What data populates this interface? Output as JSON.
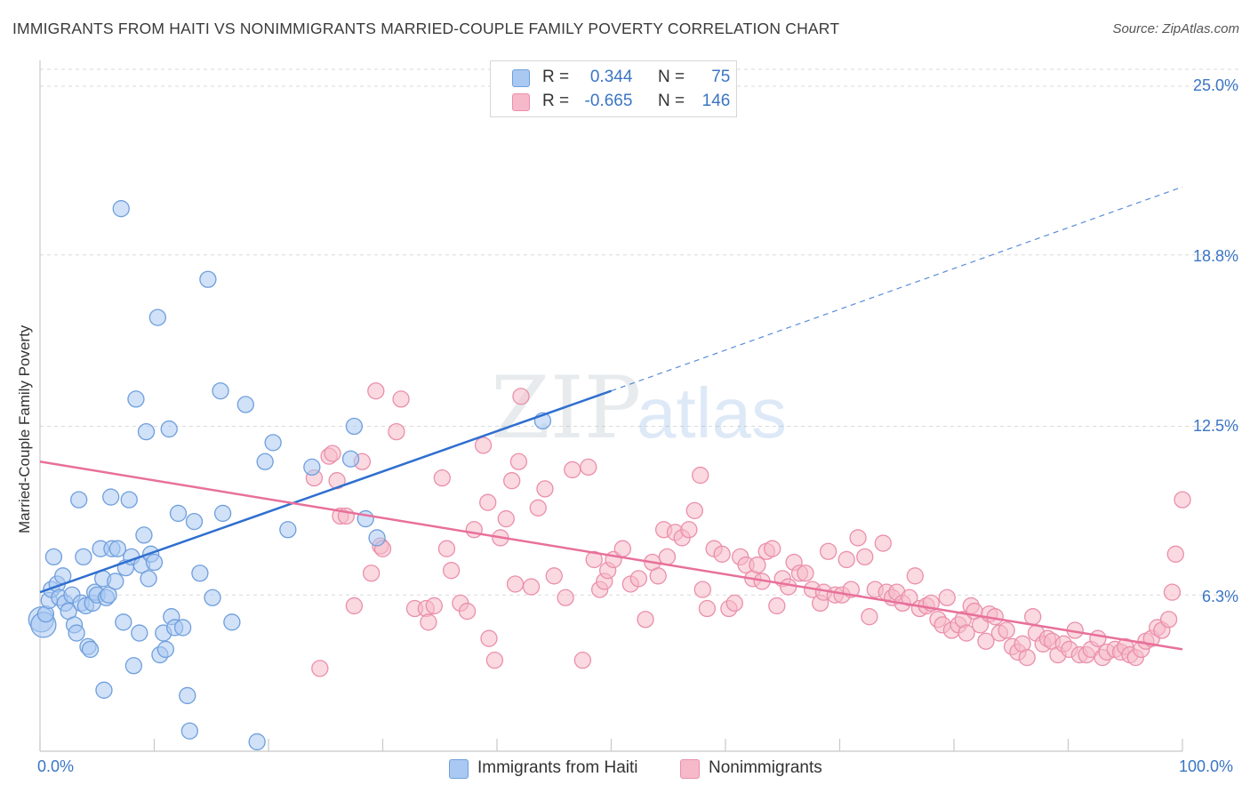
{
  "title": "IMMIGRANTS FROM HAITI VS NONIMMIGRANTS MARRIED-COUPLE FAMILY POVERTY CORRELATION CHART",
  "source": "Source: ZipAtlas.com",
  "watermark": {
    "zip": "ZIP",
    "atlas": "atlas"
  },
  "legend": {
    "rows": [
      {
        "r_label": "R =",
        "r_value": "0.344",
        "n_label": "N =",
        "n_value": "75",
        "color": "#a9c8f2"
      },
      {
        "r_label": "R =",
        "r_value": "-0.665",
        "n_label": "N =",
        "n_value": "146",
        "color": "#f6b9c9"
      }
    ]
  },
  "colors": {
    "blue_fill": "#a9c8f2",
    "blue_stroke": "#6f9fdc",
    "blue_line": "#2f6fcf",
    "pink_fill": "#f6b9c9",
    "pink_stroke": "#ea8faa",
    "pink_line": "#e8709a",
    "tick_text": "#3a75c4",
    "grid": "#d9d9d9"
  },
  "chart_data": {
    "type": "scatter",
    "title": "IMMIGRANTS FROM HAITI VS NONIMMIGRANTS MARRIED-COUPLE FAMILY POVERTY CORRELATION CHART",
    "xlabel": "",
    "ylabel": "Married-Couple Family Poverty",
    "xlim": [
      0,
      100
    ],
    "ylim": [
      0,
      26
    ],
    "x_tick_labels": [
      "0.0%",
      "100.0%"
    ],
    "y_ticks": [
      6.3,
      12.5,
      18.8,
      25.0
    ],
    "y_tick_labels": [
      "6.3%",
      "12.5%",
      "18.8%",
      "25.0%"
    ],
    "grid": true,
    "legend_position": "bottom",
    "series": [
      {
        "name": "Immigrants from Haiti",
        "trend": {
          "x": [
            0,
            50
          ],
          "y": [
            6.4,
            13.8
          ],
          "dashed_to": [
            100,
            21.3
          ]
        },
        "points": [
          [
            0.1,
            5.4
          ],
          [
            0.3,
            5.2
          ],
          [
            0.5,
            5.6
          ],
          [
            0.8,
            6.1
          ],
          [
            1.0,
            6.5
          ],
          [
            1.2,
            7.7
          ],
          [
            1.5,
            6.7
          ],
          [
            1.7,
            6.2
          ],
          [
            2.0,
            7.0
          ],
          [
            2.2,
            6.0
          ],
          [
            2.5,
            5.7
          ],
          [
            2.8,
            6.3
          ],
          [
            3.0,
            5.2
          ],
          [
            3.2,
            4.9
          ],
          [
            3.4,
            9.8
          ],
          [
            3.6,
            6.0
          ],
          [
            3.8,
            7.7
          ],
          [
            4.0,
            5.9
          ],
          [
            4.2,
            4.4
          ],
          [
            4.4,
            4.3
          ],
          [
            4.6,
            6.0
          ],
          [
            4.8,
            6.4
          ],
          [
            5.0,
            6.3
          ],
          [
            5.3,
            8.0
          ],
          [
            5.5,
            6.9
          ],
          [
            5.6,
            2.8
          ],
          [
            5.8,
            6.2
          ],
          [
            6.0,
            6.3
          ],
          [
            6.2,
            9.9
          ],
          [
            6.3,
            8.0
          ],
          [
            6.6,
            6.8
          ],
          [
            6.8,
            8.0
          ],
          [
            7.1,
            20.5
          ],
          [
            7.3,
            5.3
          ],
          [
            7.5,
            7.3
          ],
          [
            7.8,
            9.8
          ],
          [
            8.0,
            7.7
          ],
          [
            8.2,
            3.7
          ],
          [
            8.4,
            13.5
          ],
          [
            8.7,
            4.9
          ],
          [
            8.9,
            7.4
          ],
          [
            9.1,
            8.5
          ],
          [
            9.3,
            12.3
          ],
          [
            9.5,
            6.9
          ],
          [
            9.7,
            7.8
          ],
          [
            10.0,
            7.5
          ],
          [
            10.3,
            16.5
          ],
          [
            10.5,
            4.1
          ],
          [
            10.8,
            4.9
          ],
          [
            11.0,
            4.3
          ],
          [
            11.3,
            12.4
          ],
          [
            11.5,
            5.5
          ],
          [
            11.8,
            5.1
          ],
          [
            12.1,
            9.3
          ],
          [
            12.5,
            5.1
          ],
          [
            12.9,
            2.6
          ],
          [
            13.1,
            1.3
          ],
          [
            13.5,
            9.0
          ],
          [
            14.0,
            7.1
          ],
          [
            14.7,
            17.9
          ],
          [
            15.1,
            6.2
          ],
          [
            15.8,
            13.8
          ],
          [
            16.0,
            9.3
          ],
          [
            16.8,
            5.3
          ],
          [
            18.0,
            13.3
          ],
          [
            19.0,
            0.9
          ],
          [
            19.7,
            11.2
          ],
          [
            20.4,
            11.9
          ],
          [
            21.7,
            8.7
          ],
          [
            23.8,
            11.0
          ],
          [
            27.2,
            11.3
          ],
          [
            27.5,
            12.5
          ],
          [
            28.5,
            9.1
          ],
          [
            29.5,
            8.4
          ],
          [
            44.0,
            12.7
          ]
        ]
      },
      {
        "name": "Nonimmigrants",
        "trend": {
          "x": [
            0,
            100
          ],
          "y": [
            11.2,
            4.3
          ]
        },
        "points": [
          [
            24.0,
            10.6
          ],
          [
            24.5,
            3.6
          ],
          [
            25.3,
            11.4
          ],
          [
            25.6,
            11.5
          ],
          [
            26.0,
            10.5
          ],
          [
            26.3,
            9.2
          ],
          [
            26.8,
            9.2
          ],
          [
            27.5,
            5.9
          ],
          [
            28.2,
            11.2
          ],
          [
            29.0,
            7.1
          ],
          [
            29.8,
            8.1
          ],
          [
            30.0,
            8.0
          ],
          [
            29.4,
            13.8
          ],
          [
            31.2,
            12.3
          ],
          [
            31.6,
            13.5
          ],
          [
            32.8,
            5.8
          ],
          [
            33.8,
            5.8
          ],
          [
            34.0,
            5.3
          ],
          [
            34.5,
            5.9
          ],
          [
            35.2,
            10.6
          ],
          [
            35.6,
            8.0
          ],
          [
            36.0,
            7.2
          ],
          [
            36.8,
            6.0
          ],
          [
            37.4,
            5.7
          ],
          [
            38.0,
            8.7
          ],
          [
            38.8,
            11.8
          ],
          [
            39.2,
            9.7
          ],
          [
            39.3,
            4.7
          ],
          [
            39.8,
            3.9
          ],
          [
            40.3,
            8.4
          ],
          [
            40.8,
            9.1
          ],
          [
            41.3,
            10.5
          ],
          [
            41.6,
            6.7
          ],
          [
            41.9,
            11.2
          ],
          [
            42.1,
            13.6
          ],
          [
            43.0,
            6.6
          ],
          [
            43.6,
            9.5
          ],
          [
            44.2,
            10.2
          ],
          [
            45.0,
            7.0
          ],
          [
            46.0,
            6.2
          ],
          [
            46.6,
            10.9
          ],
          [
            47.5,
            3.9
          ],
          [
            48.0,
            11.0
          ],
          [
            48.5,
            7.6
          ],
          [
            49.0,
            6.5
          ],
          [
            49.4,
            6.8
          ],
          [
            49.7,
            7.2
          ],
          [
            50.2,
            7.6
          ],
          [
            51.0,
            8.0
          ],
          [
            51.7,
            6.7
          ],
          [
            52.4,
            6.9
          ],
          [
            53.0,
            5.4
          ],
          [
            53.6,
            7.5
          ],
          [
            54.1,
            7.0
          ],
          [
            54.6,
            8.7
          ],
          [
            54.9,
            7.7
          ],
          [
            55.6,
            8.6
          ],
          [
            56.2,
            8.4
          ],
          [
            56.8,
            8.7
          ],
          [
            57.3,
            9.4
          ],
          [
            57.8,
            10.7
          ],
          [
            58.0,
            6.5
          ],
          [
            58.4,
            5.8
          ],
          [
            59.0,
            8.0
          ],
          [
            59.7,
            7.8
          ],
          [
            60.3,
            5.8
          ],
          [
            60.8,
            6.0
          ],
          [
            61.3,
            7.7
          ],
          [
            61.8,
            7.4
          ],
          [
            62.4,
            6.9
          ],
          [
            62.8,
            7.4
          ],
          [
            63.2,
            6.8
          ],
          [
            63.6,
            7.9
          ],
          [
            64.1,
            8.0
          ],
          [
            64.5,
            5.9
          ],
          [
            65.0,
            6.9
          ],
          [
            65.5,
            6.6
          ],
          [
            66.0,
            7.5
          ],
          [
            66.5,
            7.1
          ],
          [
            67.0,
            7.1
          ],
          [
            67.6,
            6.5
          ],
          [
            68.3,
            6.0
          ],
          [
            68.6,
            6.4
          ],
          [
            69.0,
            7.9
          ],
          [
            69.6,
            6.3
          ],
          [
            70.2,
            6.3
          ],
          [
            70.6,
            7.6
          ],
          [
            71.0,
            6.5
          ],
          [
            71.6,
            8.4
          ],
          [
            72.2,
            7.7
          ],
          [
            72.6,
            5.5
          ],
          [
            73.1,
            6.5
          ],
          [
            73.8,
            8.2
          ],
          [
            74.1,
            6.4
          ],
          [
            74.6,
            6.2
          ],
          [
            75.0,
            6.4
          ],
          [
            75.5,
            6.0
          ],
          [
            76.1,
            6.2
          ],
          [
            76.6,
            7.0
          ],
          [
            77.0,
            5.8
          ],
          [
            77.6,
            5.9
          ],
          [
            78.0,
            6.0
          ],
          [
            78.6,
            5.4
          ],
          [
            79.0,
            5.2
          ],
          [
            79.4,
            6.2
          ],
          [
            79.8,
            5.0
          ],
          [
            80.4,
            5.2
          ],
          [
            80.8,
            5.4
          ],
          [
            81.1,
            4.9
          ],
          [
            81.5,
            5.9
          ],
          [
            81.8,
            5.7
          ],
          [
            82.3,
            5.2
          ],
          [
            82.8,
            4.6
          ],
          [
            83.1,
            5.6
          ],
          [
            83.6,
            5.5
          ],
          [
            84.0,
            4.9
          ],
          [
            84.6,
            5.0
          ],
          [
            85.1,
            4.4
          ],
          [
            85.6,
            4.2
          ],
          [
            86.0,
            4.5
          ],
          [
            86.4,
            4.0
          ],
          [
            86.9,
            5.5
          ],
          [
            87.2,
            4.9
          ],
          [
            87.8,
            4.5
          ],
          [
            88.2,
            4.7
          ],
          [
            88.6,
            4.6
          ],
          [
            89.1,
            4.1
          ],
          [
            89.6,
            4.5
          ],
          [
            90.1,
            4.3
          ],
          [
            90.6,
            5.0
          ],
          [
            91.0,
            4.1
          ],
          [
            91.6,
            4.1
          ],
          [
            92.0,
            4.3
          ],
          [
            92.6,
            4.7
          ],
          [
            93.0,
            4.0
          ],
          [
            93.4,
            4.2
          ],
          [
            94.1,
            4.3
          ],
          [
            94.6,
            4.2
          ],
          [
            95.0,
            4.4
          ],
          [
            95.4,
            4.1
          ],
          [
            95.9,
            4.0
          ],
          [
            96.4,
            4.3
          ],
          [
            96.8,
            4.6
          ],
          [
            97.3,
            4.7
          ],
          [
            97.8,
            5.1
          ],
          [
            98.2,
            5.0
          ],
          [
            98.8,
            5.4
          ],
          [
            99.1,
            6.4
          ],
          [
            99.4,
            7.8
          ],
          [
            100.0,
            9.8
          ]
        ]
      }
    ]
  },
  "bottom_legend": [
    "Immigrants from Haiti",
    "Nonimmigrants"
  ],
  "axis": {
    "ylabel": "Married-Couple Family Poverty",
    "x_min_label": "0.0%",
    "x_max_label": "100.0%",
    "y_labels": [
      "25.0%",
      "18.8%",
      "12.5%",
      "6.3%"
    ]
  }
}
